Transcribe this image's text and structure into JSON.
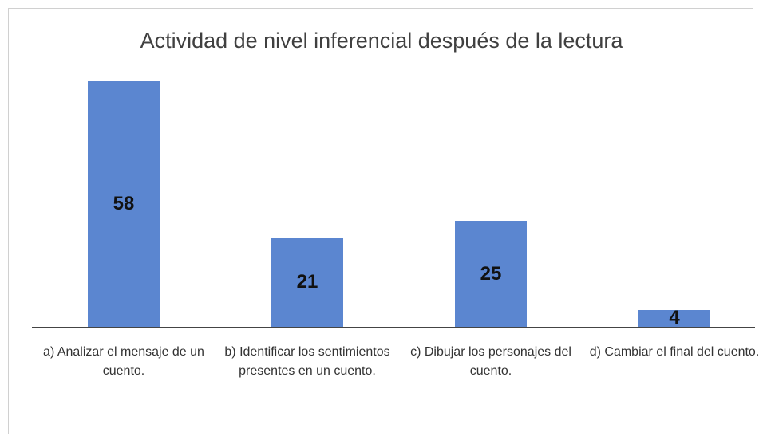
{
  "chart_data": {
    "type": "bar",
    "title": "Actividad de nivel inferencial después de la lectura",
    "categories": [
      "a) Analizar el mensaje de un cuento.",
      "b) Identificar los sentimientos presentes en un cuento.",
      "c) Dibujar los personajes del cuento.",
      "d) Cambiar el final del cuento."
    ],
    "values": [
      58,
      21,
      25,
      4
    ],
    "color": "#5b86d0"
  }
}
